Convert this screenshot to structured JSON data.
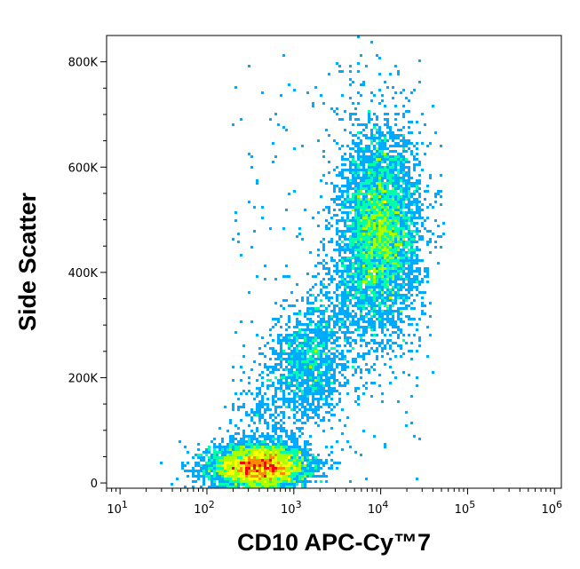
{
  "chart_data": {
    "type": "scatter",
    "subtype": "flow-cytometry-density-dot-plot",
    "title": "",
    "xlabel": "CD10 APC-Cy™7",
    "ylabel": "Side Scatter",
    "x_scale": "log",
    "y_scale": "linear",
    "xlim": [
      7,
      1200000
    ],
    "ylim": [
      -10000,
      850000
    ],
    "x_ticks": [
      {
        "value": 10,
        "base": "10",
        "exp": "1"
      },
      {
        "value": 100,
        "base": "10",
        "exp": "2"
      },
      {
        "value": 1000,
        "base": "10",
        "exp": "3"
      },
      {
        "value": 10000,
        "base": "10",
        "exp": "4"
      },
      {
        "value": 100000,
        "base": "10",
        "exp": "5"
      },
      {
        "value": 1000000,
        "base": "10",
        "exp": "6"
      }
    ],
    "y_ticks": [
      {
        "value": 0,
        "label": "0"
      },
      {
        "value": 200000,
        "label": "200K"
      },
      {
        "value": 400000,
        "label": "400K"
      },
      {
        "value": 600000,
        "label": "600K"
      },
      {
        "value": 800000,
        "label": "800K"
      }
    ],
    "grid": false,
    "legend": "none",
    "color_scale": [
      "#0000ff",
      "#00aaff",
      "#00ffaa",
      "#aaff00",
      "#ffff00",
      "#ff8800",
      "#ff0000"
    ],
    "populations": [
      {
        "center_x": 400,
        "center_y": 30000,
        "spread_logx": 0.28,
        "spread_y": 22000,
        "count": 5200,
        "peak_density": 1.0
      },
      {
        "center_x": 10000,
        "center_y": 480000,
        "spread_logx": 0.22,
        "spread_y": 95000,
        "count": 4600,
        "peak_density": 0.45
      },
      {
        "center_x": 1600,
        "center_y": 230000,
        "spread_logx": 0.22,
        "spread_y": 55000,
        "count": 900,
        "peak_density": 0.15
      }
    ]
  }
}
